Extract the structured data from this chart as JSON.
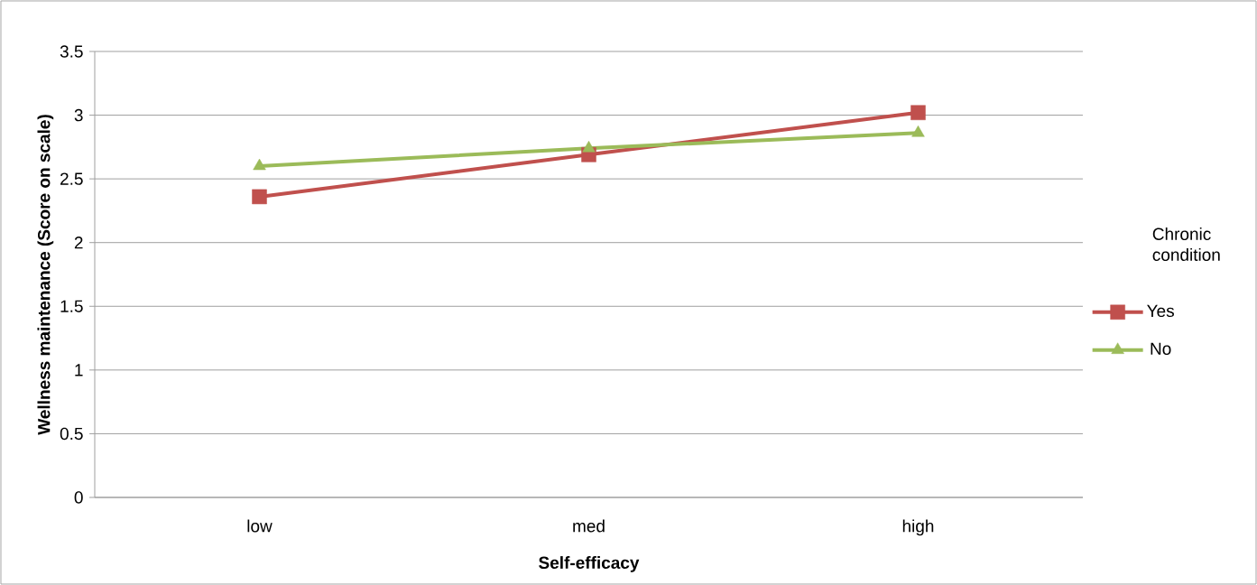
{
  "chart_data": {
    "type": "line",
    "xlabel": "Self-efficacy",
    "ylabel": "Wellness maintenance (Score on scale)",
    "legend_title": "Chronic condition",
    "categories": [
      "low",
      "med",
      "high"
    ],
    "series": [
      {
        "name": "Yes",
        "color": "#c0504d",
        "marker": "square",
        "values": [
          2.36,
          2.69,
          3.02
        ]
      },
      {
        "name": "No",
        "color": "#9bbb59",
        "marker": "triangle",
        "values": [
          2.6,
          2.74,
          2.86
        ]
      }
    ],
    "ylim": [
      0,
      3.5
    ],
    "yticks": [
      0,
      0.5,
      1,
      1.5,
      2,
      2.5,
      3,
      3.5
    ],
    "grid": "y",
    "legend": "right",
    "line_style": "solid"
  }
}
